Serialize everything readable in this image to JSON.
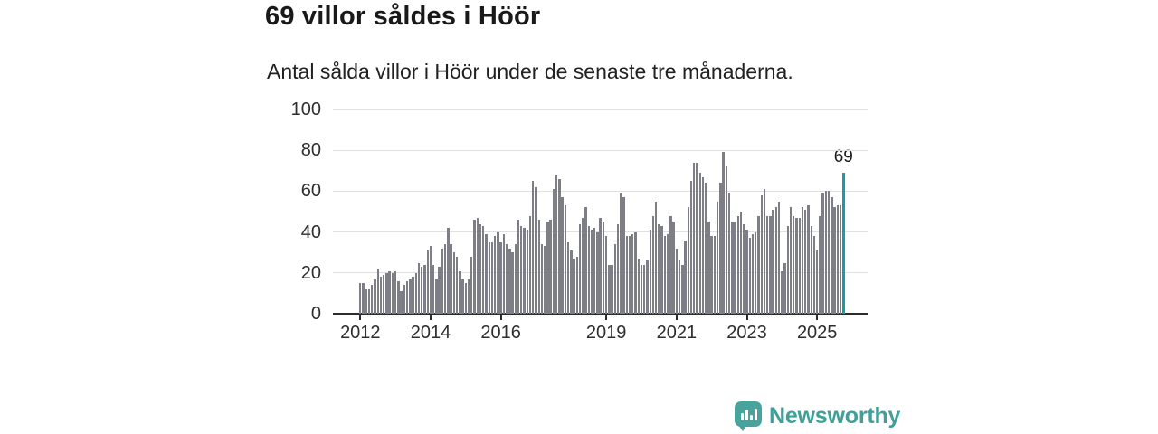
{
  "header": {
    "title": "69 villor såldes i Höör",
    "subtitle": "Antal sålda villor i Höör under de senaste tre månaderna."
  },
  "chart_data": {
    "type": "bar",
    "title": "69 villor såldes i Höör",
    "subtitle": "Antal sålda villor i Höör under de senaste tre månaderna.",
    "xlabel": "",
    "ylabel": "",
    "ylim": [
      0,
      100
    ],
    "yticks": [
      0,
      20,
      40,
      60,
      80,
      100
    ],
    "grid": "horizontal",
    "legend": "none",
    "start_month": "2012-01",
    "end_month": "2025-10",
    "x_ticks": [
      {
        "label": "2012",
        "month_index": 0
      },
      {
        "label": "2014",
        "month_index": 24
      },
      {
        "label": "2016",
        "month_index": 48
      },
      {
        "label": "2019",
        "month_index": 84
      },
      {
        "label": "2021",
        "month_index": 108
      },
      {
        "label": "2023",
        "month_index": 132
      },
      {
        "label": "2025",
        "month_index": 156
      }
    ],
    "values": [
      15,
      15,
      12,
      12,
      14,
      17,
      22,
      18,
      19,
      20,
      21,
      20,
      21,
      16,
      11,
      14,
      16,
      17,
      18,
      20,
      25,
      23,
      24,
      31,
      33,
      24,
      17,
      23,
      32,
      34,
      42,
      34,
      30,
      28,
      21,
      17,
      15,
      17,
      28,
      46,
      47,
      44,
      43,
      39,
      35,
      35,
      38,
      40,
      35,
      39,
      34,
      32,
      30,
      34,
      46,
      43,
      42,
      41,
      48,
      65,
      62,
      46,
      34,
      33,
      45,
      46,
      61,
      68,
      66,
      57,
      53,
      35,
      31,
      27,
      28,
      44,
      47,
      52,
      43,
      41,
      42,
      40,
      47,
      45,
      38,
      24,
      24,
      34,
      44,
      59,
      57,
      38,
      38,
      39,
      40,
      27,
      24,
      24,
      26,
      41,
      48,
      55,
      44,
      43,
      38,
      39,
      48,
      45,
      32,
      26,
      24,
      36,
      52,
      65,
      74,
      74,
      69,
      67,
      64,
      45,
      38,
      38,
      55,
      64,
      79,
      72,
      59,
      45,
      45,
      48,
      50,
      44,
      41,
      37,
      39,
      40,
      48,
      58,
      61,
      48,
      48,
      51,
      52,
      55,
      21,
      25,
      43,
      52,
      48,
      47,
      47,
      52,
      51,
      53,
      43,
      38,
      31,
      48,
      59,
      60,
      60,
      57,
      52,
      53,
      53,
      69
    ],
    "highlight": {
      "month_index": 165,
      "value": 69,
      "label": "69"
    }
  },
  "branding": {
    "logo_text": "Newsworthy"
  },
  "colors": {
    "bar": "#7e7e86",
    "highlight": "#12a19e",
    "grid": "#e0e0e0",
    "axis": "#2b2b2b",
    "text": "#191919",
    "logo": "#48a39d"
  }
}
